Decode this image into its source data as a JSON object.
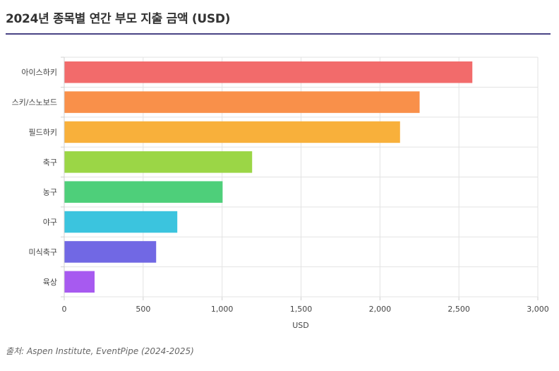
{
  "page": {
    "title": "2024년 종목별 연간 부모 지출 금액 (USD)",
    "source": "출처: Aspen Institute, EventPipe (2024-2025)"
  },
  "chart_data": {
    "type": "bar",
    "orientation": "horizontal",
    "title": "",
    "xlabel": "USD",
    "ylabel": "",
    "xlim": [
      0,
      3000
    ],
    "ticks": [
      0,
      500,
      1000,
      1500,
      2000,
      2500,
      3000
    ],
    "tick_labels": [
      "0",
      "500",
      "1,000",
      "1,500",
      "2,000",
      "2,500",
      "3,000"
    ],
    "grid": true,
    "categories": [
      "아이스하키",
      "스키/스노보드",
      "필드하키",
      "축구",
      "농구",
      "야구",
      "미식축구",
      "육상"
    ],
    "values": [
      2583,
      2249,
      2125,
      1188,
      1001,
      714,
      580,
      190
    ],
    "colors": [
      "#f26b6b",
      "#f9904a",
      "#f8b03b",
      "#9bd646",
      "#4ecf7a",
      "#3bc4de",
      "#7168e4",
      "#a75af0"
    ]
  }
}
